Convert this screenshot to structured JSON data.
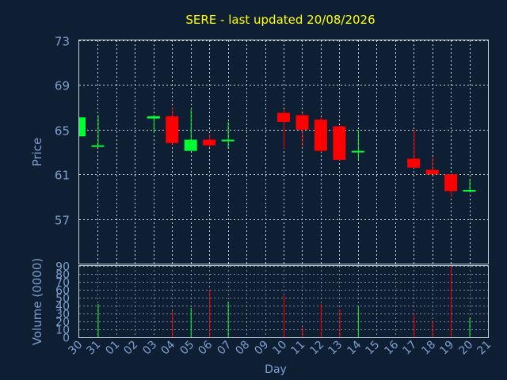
{
  "colors": {
    "background": "#0f1f33",
    "title": "#ffff00",
    "label": "#7f9fcf",
    "axis": "#c8d0dc",
    "grid": "#c8d0dc",
    "up": "#00ff33",
    "down": "#ff0000"
  },
  "chart_data": {
    "type": "candlestick",
    "title": "SERE - last updated 20/08/2026",
    "xlabel": "Day",
    "grid": true,
    "categories": [
      "30",
      "31",
      "01",
      "02",
      "03",
      "04",
      "05",
      "06",
      "07",
      "08",
      "09",
      "10",
      "11",
      "12",
      "13",
      "14",
      "15",
      "16",
      "17",
      "18",
      "19",
      "20",
      "21"
    ],
    "price_panel": {
      "ylabel": "Price",
      "ylim": [
        53,
        73
      ],
      "yticks": [
        57,
        61,
        65,
        69,
        73
      ],
      "candles": [
        {
          "day": "30",
          "open": 64.4,
          "high": 66.1,
          "low": 64.4,
          "close": 66.1
        },
        {
          "day": "31",
          "open": 63.5,
          "high": 66.3,
          "low": 63.5,
          "close": 63.6
        },
        {
          "day": "03",
          "open": 66.0,
          "high": 66.3,
          "low": 64.7,
          "close": 66.2
        },
        {
          "day": "04",
          "open": 66.2,
          "high": 67.0,
          "low": 63.6,
          "close": 63.8
        },
        {
          "day": "05",
          "open": 63.1,
          "high": 66.8,
          "low": 63.1,
          "close": 64.1
        },
        {
          "day": "06",
          "open": 64.1,
          "high": 64.6,
          "low": 63.4,
          "close": 63.6
        },
        {
          "day": "07",
          "open": 64.0,
          "high": 65.7,
          "low": 63.3,
          "close": 64.1
        },
        {
          "day": "10",
          "open": 66.5,
          "high": 66.8,
          "low": 63.3,
          "close": 65.7
        },
        {
          "day": "11",
          "open": 66.3,
          "high": 66.5,
          "low": 63.5,
          "close": 65.0
        },
        {
          "day": "12",
          "open": 65.9,
          "high": 66.1,
          "low": 63.0,
          "close": 63.1
        },
        {
          "day": "13",
          "open": 65.3,
          "high": 65.4,
          "low": 62.2,
          "close": 62.3
        },
        {
          "day": "14",
          "open": 63.0,
          "high": 65.0,
          "low": 62.3,
          "close": 63.1
        },
        {
          "day": "17",
          "open": 62.4,
          "high": 65.0,
          "low": 61.6,
          "close": 61.6
        },
        {
          "day": "18",
          "open": 61.4,
          "high": 62.5,
          "low": 61.0,
          "close": 61.0
        },
        {
          "day": "19",
          "open": 61.0,
          "high": 61.0,
          "low": 59.0,
          "close": 59.5
        },
        {
          "day": "20",
          "open": 59.5,
          "high": 60.6,
          "low": 59.4,
          "close": 59.6
        }
      ]
    },
    "volume_panel": {
      "ylabel": "Volume (0000)",
      "ylim": [
        0,
        90
      ],
      "yticks": [
        0,
        10,
        20,
        30,
        40,
        50,
        60,
        70,
        80,
        90
      ],
      "bars": [
        {
          "day": "31",
          "value": 42,
          "direction": "up"
        },
        {
          "day": "04",
          "value": 33,
          "direction": "down"
        },
        {
          "day": "05",
          "value": 37,
          "direction": "up"
        },
        {
          "day": "06",
          "value": 60,
          "direction": "down"
        },
        {
          "day": "07",
          "value": 45,
          "direction": "up"
        },
        {
          "day": "10",
          "value": 52,
          "direction": "down"
        },
        {
          "day": "11",
          "value": 13,
          "direction": "down"
        },
        {
          "day": "12",
          "value": 42,
          "direction": "down"
        },
        {
          "day": "13",
          "value": 35,
          "direction": "down"
        },
        {
          "day": "14",
          "value": 38,
          "direction": "up"
        },
        {
          "day": "17",
          "value": 29,
          "direction": "down"
        },
        {
          "day": "18",
          "value": 21,
          "direction": "down"
        },
        {
          "day": "19",
          "value": 90,
          "direction": "down"
        },
        {
          "day": "20",
          "value": 25,
          "direction": "up"
        }
      ]
    }
  }
}
